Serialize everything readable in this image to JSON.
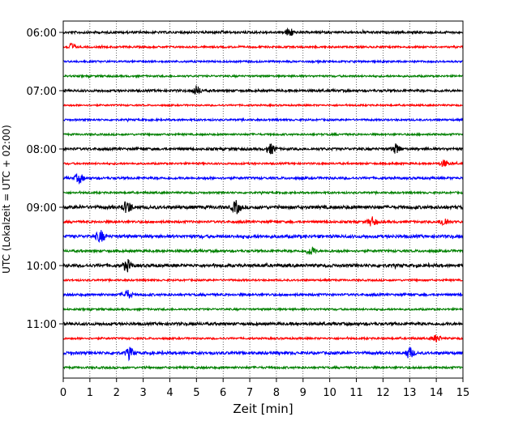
{
  "chart_data": {
    "type": "line",
    "title": "",
    "xlabel": "Zeit  [min]",
    "ylabel": "UTC (Lokalzeit = UTC + 02:00)",
    "xlim": [
      0,
      15
    ],
    "x_ticks": [
      "0",
      "1",
      "2",
      "3",
      "4",
      "5",
      "6",
      "7",
      "8",
      "9",
      "10",
      "11",
      "12",
      "13",
      "14",
      "15"
    ],
    "y_ticks": [
      "06:00",
      "07:00",
      "08:00",
      "09:00",
      "10:00",
      "11:00"
    ],
    "grid": "vertical-dotted",
    "legend": "none",
    "trace_colors": [
      "#000000",
      "#ff0000",
      "#0000ff",
      "#008000"
    ],
    "traces": [
      {
        "start": "06:00",
        "amplitude": 1.0,
        "events": [
          8.5
        ]
      },
      {
        "start": "06:15",
        "amplitude": 0.8,
        "events": [
          0.3
        ]
      },
      {
        "start": "06:30",
        "amplitude": 0.8,
        "events": []
      },
      {
        "start": "06:45",
        "amplitude": 0.8,
        "events": []
      },
      {
        "start": "07:00",
        "amplitude": 1.0,
        "events": [
          5.0
        ]
      },
      {
        "start": "07:15",
        "amplitude": 0.7,
        "events": []
      },
      {
        "start": "07:30",
        "amplitude": 0.8,
        "events": []
      },
      {
        "start": "07:45",
        "amplitude": 0.8,
        "events": []
      },
      {
        "start": "08:00",
        "amplitude": 1.1,
        "events": [
          7.8,
          12.5
        ]
      },
      {
        "start": "08:15",
        "amplitude": 0.8,
        "events": [
          14.3
        ]
      },
      {
        "start": "08:30",
        "amplitude": 1.0,
        "events": [
          0.6
        ]
      },
      {
        "start": "08:45",
        "amplitude": 0.8,
        "events": []
      },
      {
        "start": "09:00",
        "amplitude": 1.4,
        "events": [
          2.4,
          6.5
        ]
      },
      {
        "start": "09:15",
        "amplitude": 1.0,
        "events": [
          11.6,
          14.3
        ]
      },
      {
        "start": "09:30",
        "amplitude": 1.3,
        "events": [
          1.4
        ]
      },
      {
        "start": "09:45",
        "amplitude": 1.0,
        "events": [
          9.3
        ]
      },
      {
        "start": "10:00",
        "amplitude": 1.3,
        "events": [
          2.4
        ]
      },
      {
        "start": "10:15",
        "amplitude": 0.8,
        "events": []
      },
      {
        "start": "10:30",
        "amplitude": 1.0,
        "events": [
          2.4
        ]
      },
      {
        "start": "10:45",
        "amplitude": 0.8,
        "events": []
      },
      {
        "start": "11:00",
        "amplitude": 1.2,
        "events": []
      },
      {
        "start": "11:15",
        "amplitude": 0.8,
        "events": [
          14.0
        ]
      },
      {
        "start": "11:30",
        "amplitude": 1.2,
        "events": [
          2.5,
          13.0
        ]
      },
      {
        "start": "11:45",
        "amplitude": 0.9,
        "events": []
      }
    ]
  }
}
